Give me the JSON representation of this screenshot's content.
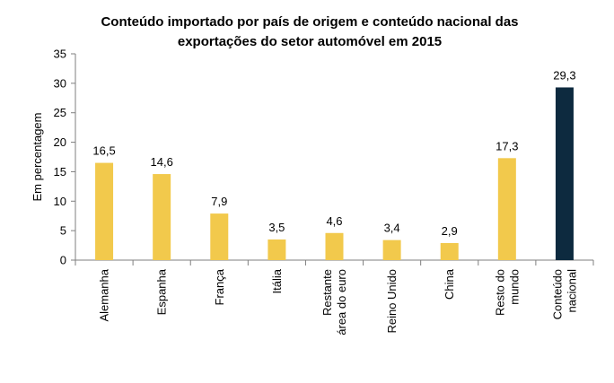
{
  "chart_data": {
    "type": "bar",
    "title": [
      "Conteúdo importado por país de origem e conteúdo nacional das",
      "exportações do setor automóvel em 2015"
    ],
    "ylabel": "Em percentagem",
    "xlabel": "",
    "ylim": [
      0,
      35
    ],
    "yticks": [
      "0",
      "5",
      "10",
      "15",
      "20",
      "25",
      "30",
      "35"
    ],
    "ytick_values": [
      0,
      5,
      10,
      15,
      20,
      25,
      30,
      35
    ],
    "categories": [
      [
        "Alemanha"
      ],
      [
        "Espanha"
      ],
      [
        "França"
      ],
      [
        "Itália"
      ],
      [
        "Restante",
        "área do euro"
      ],
      [
        "Reino Unido"
      ],
      [
        "China"
      ],
      [
        "Resto do",
        "mundo"
      ],
      [
        "Conteúdo",
        "nacional"
      ]
    ],
    "values": [
      16.5,
      14.6,
      7.9,
      3.5,
      4.6,
      3.4,
      2.9,
      17.3,
      29.3
    ],
    "value_labels": [
      "16,5",
      "14,6",
      "7,9",
      "3,5",
      "4,6",
      "3,4",
      "2,9",
      "17,3",
      "29,3"
    ],
    "bar_colors": [
      "#F2C94C",
      "#F2C94C",
      "#F2C94C",
      "#F2C94C",
      "#F2C94C",
      "#F2C94C",
      "#F2C94C",
      "#F2C94C",
      "#0D2A3F"
    ],
    "grid": false,
    "legend": "none"
  }
}
